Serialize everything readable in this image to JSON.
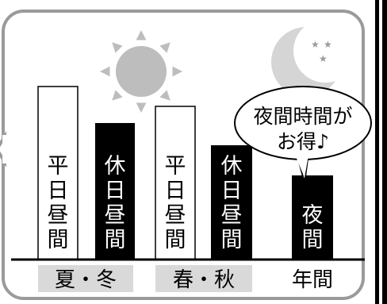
{
  "bars": [
    {
      "label": "平日昼間",
      "style": "outline",
      "value": 218
    },
    {
      "label": "休日昼間",
      "style": "solid",
      "value": 172
    },
    {
      "label": "平日昼間",
      "style": "outline",
      "value": 193
    },
    {
      "label": "休日昼間",
      "style": "solid",
      "value": 144
    },
    {
      "label": "夜間",
      "style": "solid",
      "value": 106
    }
  ],
  "categories": [
    {
      "label": "夏・冬",
      "shaded": true
    },
    {
      "label": "春・秋",
      "shaded": true
    },
    {
      "label": "年間",
      "shaded": false
    }
  ],
  "bubble": {
    "line1": "夜間時間が",
    "line2": "お得♪"
  },
  "icons": {
    "day": "sun-icon",
    "night": "crescent-moon-icon",
    "stars": "stars-icon"
  },
  "colors": {
    "solid": "#000000",
    "outline": "#ffffff",
    "sun": "#bdbdbd",
    "moon": "#d5d5d5",
    "label_bg": "#d9d9d9",
    "frame": "#9a9a9a"
  }
}
